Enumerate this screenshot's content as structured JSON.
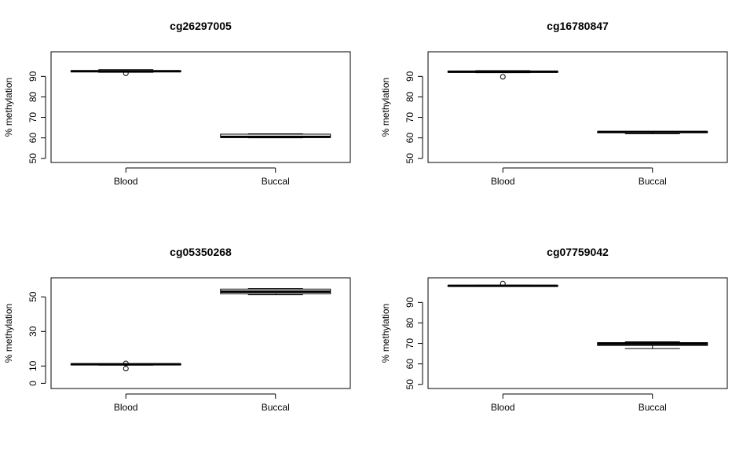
{
  "chart_data": [
    {
      "type": "boxplot",
      "title": "cg26297005",
      "ylabel": "% methylation",
      "categories": [
        "Blood",
        "Buccal"
      ],
      "ylim": [
        48,
        102
      ],
      "yticks": [
        50,
        60,
        70,
        80,
        90
      ],
      "boxes": [
        {
          "name": "Blood",
          "whisker_low": 92.0,
          "q1": 92.3,
          "median": 92.5,
          "q3": 92.7,
          "whisker_high": 93.3,
          "outliers": [
            91.5
          ]
        },
        {
          "name": "Buccal",
          "whisker_low": 60.0,
          "q1": 60.2,
          "median": 60.5,
          "q3": 61.8,
          "whisker_high": 62.0,
          "outliers": []
        }
      ]
    },
    {
      "type": "boxplot",
      "title": "cg16780847",
      "ylabel": "% methylation",
      "categories": [
        "Blood",
        "Buccal"
      ],
      "ylim": [
        48,
        102
      ],
      "yticks": [
        50,
        60,
        70,
        80,
        90
      ],
      "boxes": [
        {
          "name": "Blood",
          "whisker_low": 91.8,
          "q1": 92.0,
          "median": 92.3,
          "q3": 92.5,
          "whisker_high": 92.8,
          "outliers": [
            89.8
          ]
        },
        {
          "name": "Buccal",
          "whisker_low": 62.0,
          "q1": 62.5,
          "median": 62.9,
          "q3": 63.0,
          "whisker_high": 63.0,
          "outliers": []
        }
      ]
    },
    {
      "type": "boxplot",
      "title": "cg05350268",
      "ylabel": "% methylation",
      "categories": [
        "Blood",
        "Buccal"
      ],
      "ylim": [
        -3,
        61
      ],
      "yticks": [
        0,
        10,
        30,
        50
      ],
      "boxes": [
        {
          "name": "Blood",
          "whisker_low": 10.5,
          "q1": 10.7,
          "median": 11.0,
          "q3": 11.2,
          "whisker_high": 11.3,
          "outliers": [
            11.5,
            8.5
          ]
        },
        {
          "name": "Buccal",
          "whisker_low": 51.2,
          "q1": 51.8,
          "median": 53.0,
          "q3": 54.5,
          "whisker_high": 54.8,
          "outliers": []
        }
      ]
    },
    {
      "type": "boxplot",
      "title": "cg07759042",
      "ylabel": "% methylation",
      "categories": [
        "Blood",
        "Buccal"
      ],
      "ylim": [
        48,
        102
      ],
      "yticks": [
        50,
        60,
        70,
        80,
        90
      ],
      "boxes": [
        {
          "name": "Blood",
          "whisker_low": 97.8,
          "q1": 97.9,
          "median": 98.1,
          "q3": 98.3,
          "whisker_high": 98.4,
          "outliers": [
            99.2
          ]
        },
        {
          "name": "Buccal",
          "whisker_low": 67.5,
          "q1": 69.0,
          "median": 69.8,
          "q3": 70.4,
          "whisker_high": 70.8,
          "outliers": []
        }
      ]
    }
  ]
}
